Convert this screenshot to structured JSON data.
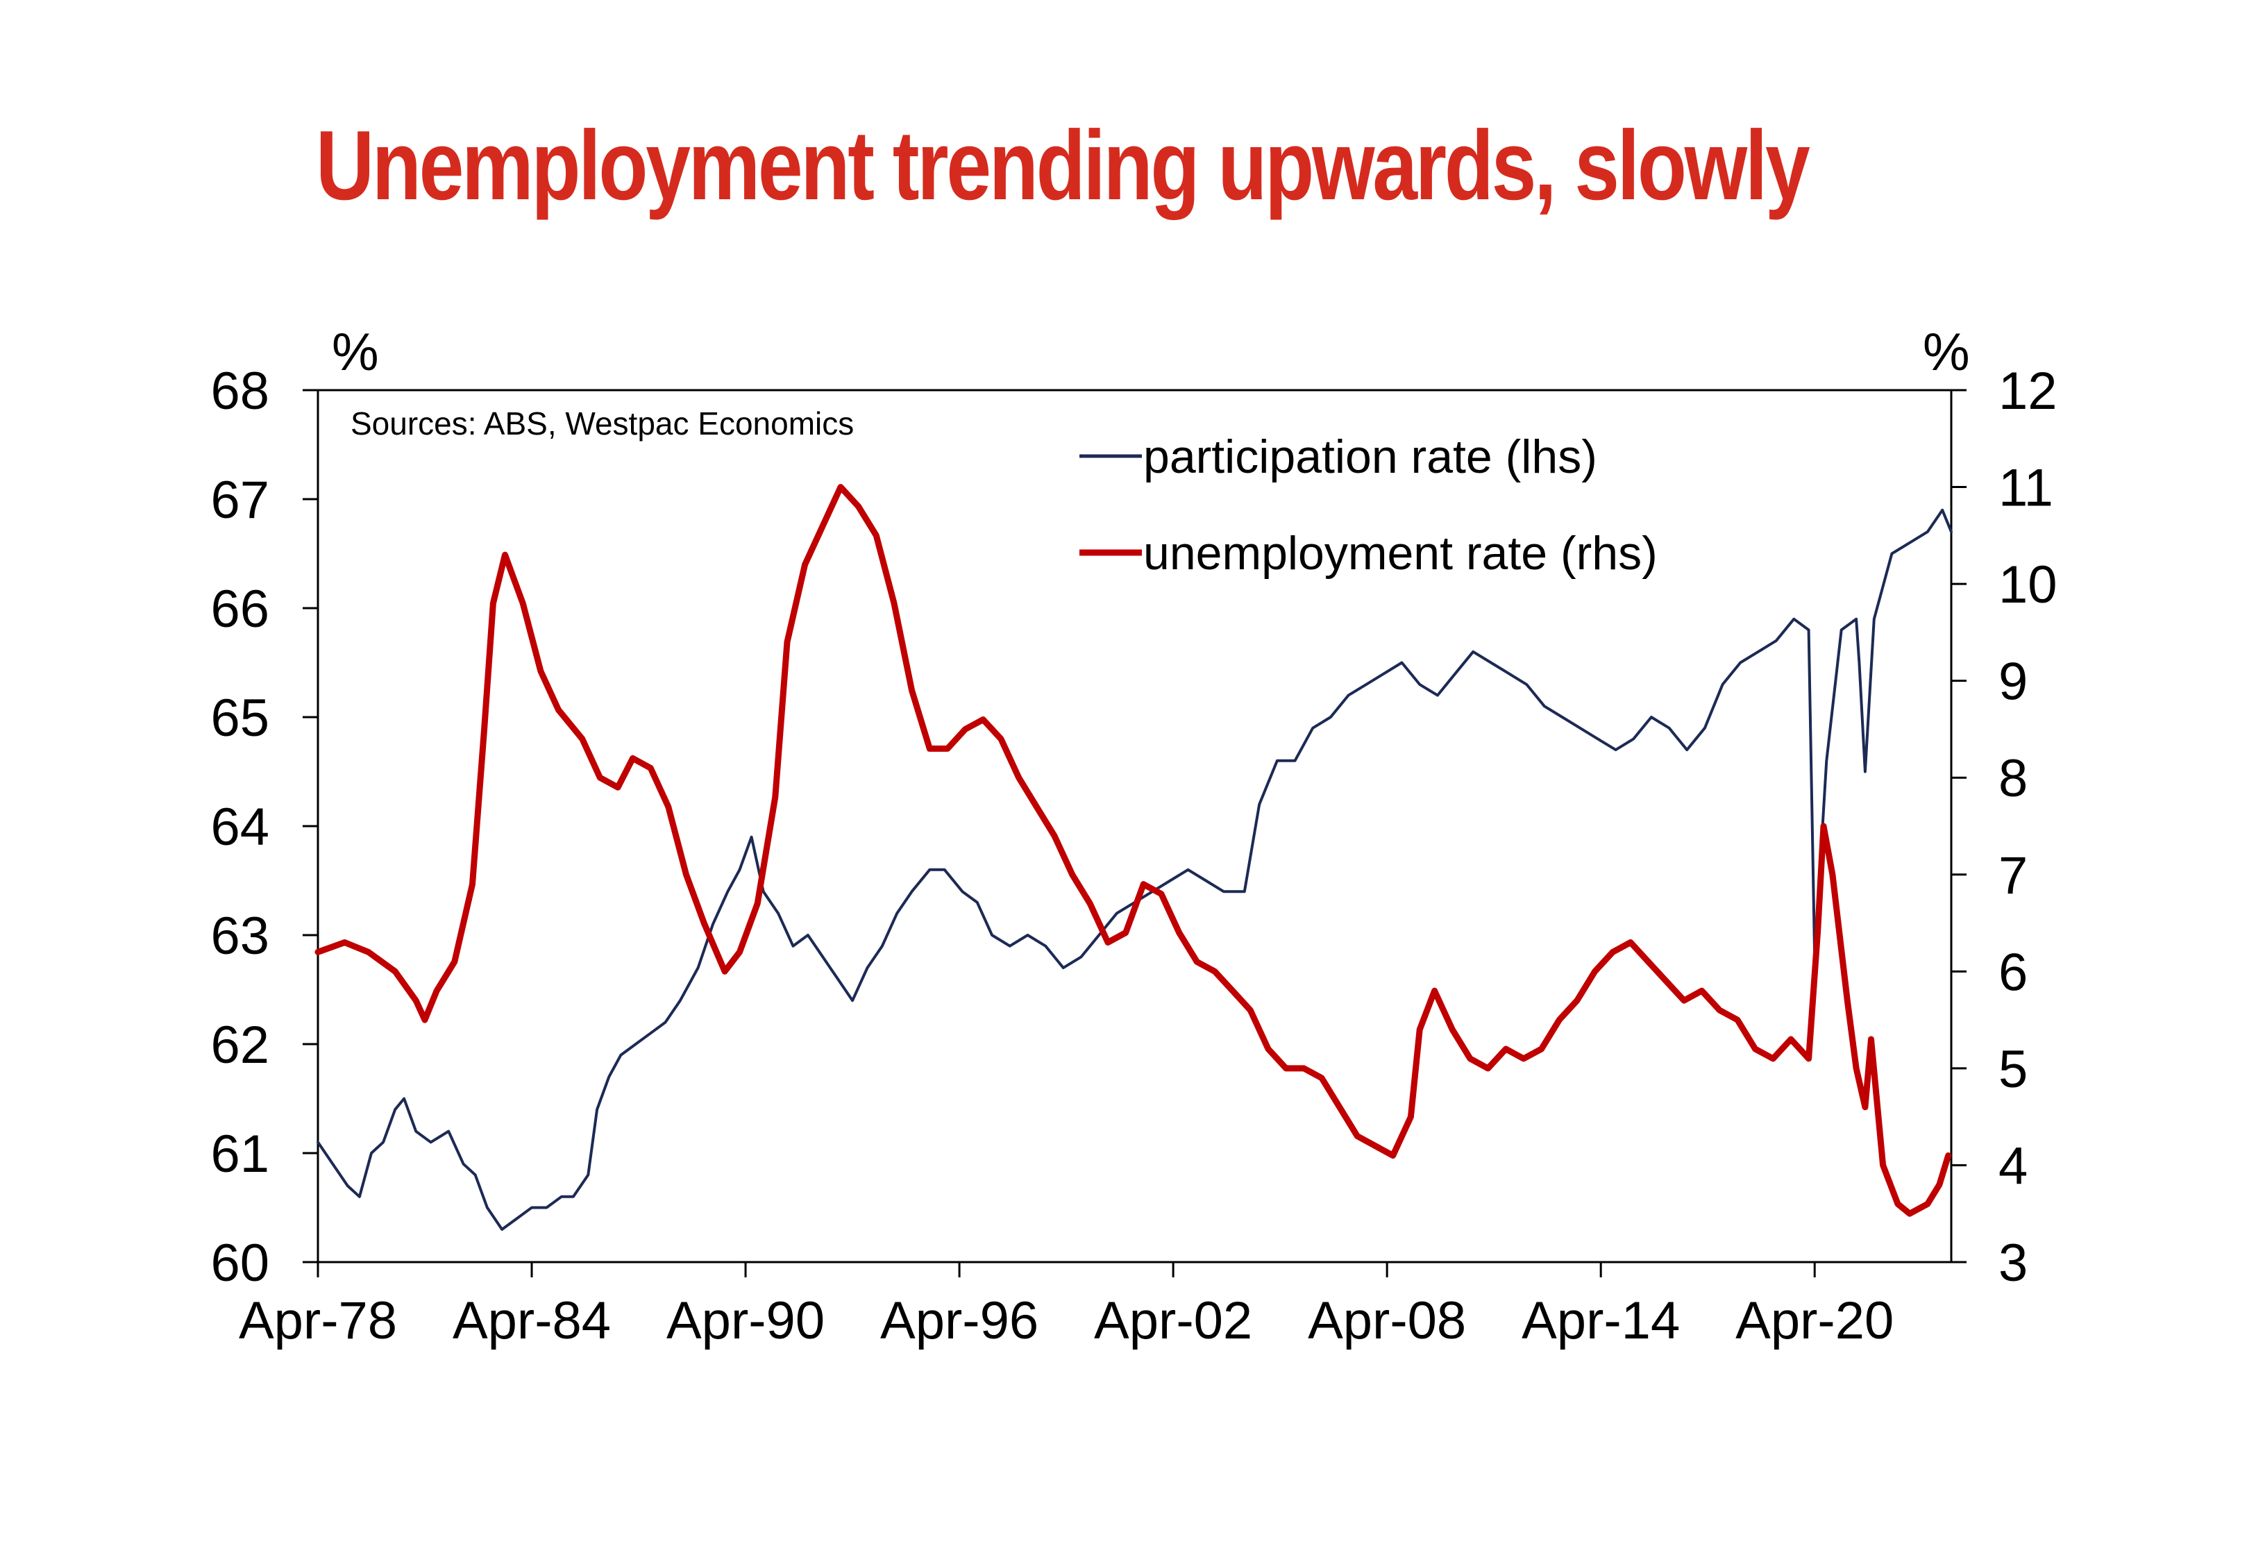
{
  "chart_data": {
    "type": "line",
    "title": "Unemployment trending upwards, slowly",
    "source": "Sources: ABS, Westpac Economics",
    "left_axis": {
      "unit": "%",
      "ylim": [
        60,
        68
      ],
      "ticks": [
        "60",
        "61",
        "62",
        "63",
        "64",
        "65",
        "66",
        "67",
        "68"
      ]
    },
    "right_axis": {
      "unit": "%",
      "ylim": [
        3,
        12
      ],
      "ticks": [
        "3",
        "4",
        "5",
        "6",
        "7",
        "8",
        "9",
        "10",
        "11",
        "12"
      ]
    },
    "x_axis": {
      "ticks": [
        "Apr-78",
        "Apr-84",
        "Apr-90",
        "Apr-96",
        "Apr-02",
        "Apr-08",
        "Apr-14",
        "Apr-20"
      ],
      "range": [
        "1978-04",
        "2024-02"
      ]
    },
    "grid": false,
    "legend_position": "top-right",
    "colors": {
      "participation": "#1c2a55",
      "unemployment": "#c00000",
      "title": "#d52b1e"
    },
    "series": [
      {
        "name": "participation rate (lhs)",
        "axis": "left",
        "points": [
          [
            "1978-04",
            61.1
          ],
          [
            "1978-09",
            60.9
          ],
          [
            "1979-02",
            60.7
          ],
          [
            "1979-06",
            60.6
          ],
          [
            "1979-10",
            61.0
          ],
          [
            "1980-02",
            61.1
          ],
          [
            "1980-06",
            61.4
          ],
          [
            "1980-09",
            61.5
          ],
          [
            "1981-01",
            61.2
          ],
          [
            "1981-06",
            61.1
          ],
          [
            "1981-12",
            61.2
          ],
          [
            "1982-05",
            60.9
          ],
          [
            "1982-09",
            60.8
          ],
          [
            "1983-01",
            60.5
          ],
          [
            "1983-06",
            60.3
          ],
          [
            "1983-11",
            60.4
          ],
          [
            "1984-04",
            60.5
          ],
          [
            "1984-09",
            60.5
          ],
          [
            "1985-02",
            60.6
          ],
          [
            "1985-06",
            60.6
          ],
          [
            "1985-11",
            60.8
          ],
          [
            "1986-02",
            61.4
          ],
          [
            "1986-06",
            61.7
          ],
          [
            "1986-10",
            61.9
          ],
          [
            "1987-03",
            62.0
          ],
          [
            "1987-08",
            62.1
          ],
          [
            "1988-01",
            62.2
          ],
          [
            "1988-06",
            62.4
          ],
          [
            "1988-12",
            62.7
          ],
          [
            "1989-05",
            63.1
          ],
          [
            "1989-10",
            63.4
          ],
          [
            "1990-02",
            63.6
          ],
          [
            "1990-06",
            63.9
          ],
          [
            "1990-10",
            63.4
          ],
          [
            "1991-03",
            63.2
          ],
          [
            "1991-08",
            62.9
          ],
          [
            "1992-01",
            63.0
          ],
          [
            "1992-06",
            62.8
          ],
          [
            "1992-11",
            62.6
          ],
          [
            "1993-04",
            62.4
          ],
          [
            "1993-09",
            62.7
          ],
          [
            "1994-02",
            62.9
          ],
          [
            "1994-07",
            63.2
          ],
          [
            "1994-12",
            63.4
          ],
          [
            "1995-06",
            63.6
          ],
          [
            "1995-11",
            63.6
          ],
          [
            "1996-05",
            63.4
          ],
          [
            "1996-10",
            63.3
          ],
          [
            "1997-03",
            63.0
          ],
          [
            "1997-09",
            62.9
          ],
          [
            "1998-03",
            63.0
          ],
          [
            "1998-09",
            62.9
          ],
          [
            "1999-03",
            62.7
          ],
          [
            "1999-09",
            62.8
          ],
          [
            "2000-03",
            63.0
          ],
          [
            "2000-09",
            63.2
          ],
          [
            "2001-03",
            63.3
          ],
          [
            "2001-09",
            63.4
          ],
          [
            "2002-03",
            63.5
          ],
          [
            "2002-09",
            63.6
          ],
          [
            "2003-03",
            63.5
          ],
          [
            "2003-09",
            63.4
          ],
          [
            "2004-04",
            63.4
          ],
          [
            "2004-09",
            64.2
          ],
          [
            "2005-03",
            64.6
          ],
          [
            "2005-09",
            64.6
          ],
          [
            "2006-03",
            64.9
          ],
          [
            "2006-09",
            65.0
          ],
          [
            "2007-03",
            65.2
          ],
          [
            "2007-09",
            65.3
          ],
          [
            "2008-03",
            65.4
          ],
          [
            "2008-09",
            65.5
          ],
          [
            "2009-03",
            65.3
          ],
          [
            "2009-09",
            65.2
          ],
          [
            "2010-03",
            65.4
          ],
          [
            "2010-09",
            65.6
          ],
          [
            "2011-03",
            65.5
          ],
          [
            "2011-09",
            65.4
          ],
          [
            "2012-03",
            65.3
          ],
          [
            "2012-09",
            65.1
          ],
          [
            "2013-03",
            65.0
          ],
          [
            "2013-09",
            64.9
          ],
          [
            "2014-03",
            64.8
          ],
          [
            "2014-09",
            64.7
          ],
          [
            "2015-03",
            64.8
          ],
          [
            "2015-09",
            65.0
          ],
          [
            "2016-03",
            64.9
          ],
          [
            "2016-09",
            64.7
          ],
          [
            "2017-03",
            64.9
          ],
          [
            "2017-09",
            65.3
          ],
          [
            "2018-03",
            65.5
          ],
          [
            "2018-09",
            65.6
          ],
          [
            "2019-03",
            65.7
          ],
          [
            "2019-09",
            65.9
          ],
          [
            "2020-02",
            65.8
          ],
          [
            "2020-04",
            62.8
          ],
          [
            "2020-08",
            64.6
          ],
          [
            "2021-01",
            65.8
          ],
          [
            "2021-06",
            65.9
          ],
          [
            "2021-07",
            65.5
          ],
          [
            "2021-09",
            64.5
          ],
          [
            "2021-12",
            65.9
          ],
          [
            "2022-06",
            66.5
          ],
          [
            "2022-12",
            66.6
          ],
          [
            "2023-06",
            66.7
          ],
          [
            "2023-11",
            66.9
          ],
          [
            "2024-02",
            66.7
          ]
        ]
      },
      {
        "name": "unemployment rate (rhs)",
        "axis": "right",
        "points": [
          [
            "1978-04",
            6.2
          ],
          [
            "1979-01",
            6.3
          ],
          [
            "1979-09",
            6.2
          ],
          [
            "1980-06",
            6.0
          ],
          [
            "1981-01",
            5.7
          ],
          [
            "1981-04",
            5.5
          ],
          [
            "1981-08",
            5.8
          ],
          [
            "1982-02",
            6.1
          ],
          [
            "1982-08",
            6.9
          ],
          [
            "1982-12",
            8.5
          ],
          [
            "1983-03",
            9.8
          ],
          [
            "1983-07",
            10.3
          ],
          [
            "1984-01",
            9.8
          ],
          [
            "1984-07",
            9.1
          ],
          [
            "1985-01",
            8.7
          ],
          [
            "1985-09",
            8.4
          ],
          [
            "1986-03",
            8.0
          ],
          [
            "1986-09",
            7.9
          ],
          [
            "1987-02",
            8.2
          ],
          [
            "1987-08",
            8.1
          ],
          [
            "1988-02",
            7.7
          ],
          [
            "1988-08",
            7.0
          ],
          [
            "1989-02",
            6.5
          ],
          [
            "1989-09",
            6.0
          ],
          [
            "1990-02",
            6.2
          ],
          [
            "1990-08",
            6.7
          ],
          [
            "1991-02",
            7.8
          ],
          [
            "1991-06",
            9.4
          ],
          [
            "1991-12",
            10.2
          ],
          [
            "1992-06",
            10.6
          ],
          [
            "1992-12",
            11.0
          ],
          [
            "1993-06",
            10.8
          ],
          [
            "1993-12",
            10.5
          ],
          [
            "1994-06",
            9.8
          ],
          [
            "1994-12",
            8.9
          ],
          [
            "1995-06",
            8.3
          ],
          [
            "1995-12",
            8.3
          ],
          [
            "1996-06",
            8.5
          ],
          [
            "1996-12",
            8.6
          ],
          [
            "1997-06",
            8.4
          ],
          [
            "1997-12",
            8.0
          ],
          [
            "1998-06",
            7.7
          ],
          [
            "1998-12",
            7.4
          ],
          [
            "1999-06",
            7.0
          ],
          [
            "1999-12",
            6.7
          ],
          [
            "2000-06",
            6.3
          ],
          [
            "2000-12",
            6.4
          ],
          [
            "2001-06",
            6.9
          ],
          [
            "2001-12",
            6.8
          ],
          [
            "2002-06",
            6.4
          ],
          [
            "2002-12",
            6.1
          ],
          [
            "2003-06",
            6.0
          ],
          [
            "2003-12",
            5.8
          ],
          [
            "2004-06",
            5.6
          ],
          [
            "2004-12",
            5.2
          ],
          [
            "2005-06",
            5.0
          ],
          [
            "2005-12",
            5.0
          ],
          [
            "2006-06",
            4.9
          ],
          [
            "2006-12",
            4.6
          ],
          [
            "2007-06",
            4.3
          ],
          [
            "2007-12",
            4.2
          ],
          [
            "2008-06",
            4.1
          ],
          [
            "2008-12",
            4.5
          ],
          [
            "2009-03",
            5.4
          ],
          [
            "2009-08",
            5.8
          ],
          [
            "2010-02",
            5.4
          ],
          [
            "2010-08",
            5.1
          ],
          [
            "2011-02",
            5.0
          ],
          [
            "2011-08",
            5.2
          ],
          [
            "2012-02",
            5.1
          ],
          [
            "2012-08",
            5.2
          ],
          [
            "2013-02",
            5.5
          ],
          [
            "2013-08",
            5.7
          ],
          [
            "2014-02",
            6.0
          ],
          [
            "2014-08",
            6.2
          ],
          [
            "2015-02",
            6.3
          ],
          [
            "2015-08",
            6.1
          ],
          [
            "2016-02",
            5.9
          ],
          [
            "2016-08",
            5.7
          ],
          [
            "2017-02",
            5.8
          ],
          [
            "2017-08",
            5.6
          ],
          [
            "2018-02",
            5.5
          ],
          [
            "2018-08",
            5.2
          ],
          [
            "2019-02",
            5.1
          ],
          [
            "2019-08",
            5.3
          ],
          [
            "2020-02",
            5.1
          ],
          [
            "2020-05",
            6.4
          ],
          [
            "2020-07",
            7.5
          ],
          [
            "2020-10",
            7.0
          ],
          [
            "2021-03",
            5.7
          ],
          [
            "2021-06",
            5.0
          ],
          [
            "2021-09",
            4.6
          ],
          [
            "2021-11",
            5.3
          ],
          [
            "2022-03",
            4.0
          ],
          [
            "2022-08",
            3.6
          ],
          [
            "2022-12",
            3.5
          ],
          [
            "2023-06",
            3.6
          ],
          [
            "2023-10",
            3.8
          ],
          [
            "2024-01",
            4.1
          ]
        ]
      }
    ]
  }
}
